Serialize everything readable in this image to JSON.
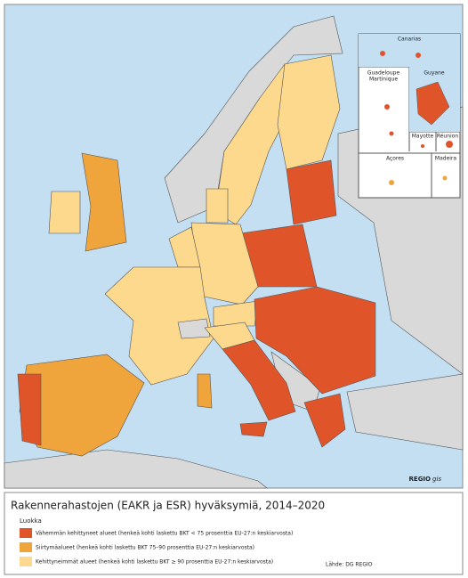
{
  "map": {
    "insets": [
      "Canarias",
      "Guadeloupe",
      "Martinique",
      "Guyane",
      "Mayotte",
      "Réunion",
      "Açores",
      "Madeira"
    ],
    "credit": "REGIO",
    "credit_suffix": "gis"
  },
  "legend": {
    "title": "Rakennerahastojen (EAKR ja ESR) hyväksymiä, 2014–2020",
    "heading": "Luokka",
    "items": [
      {
        "label": "Vähemmän kehittyneet alueet (henkeä kohti laskettu BKT < 75 prosenttia EU-27:n keskiarvosta)",
        "color": "#e0542a"
      },
      {
        "label": "Siirtymäalueet (henkeä kohti laskettu BKT 75–90 prosenttia EU-27:n keskiarvosta)",
        "color": "#f0a43c"
      },
      {
        "label": "Kehittyneimmät alueet (henkeä kohti laskettu BKT ≥ 90 prosenttia EU-27:n keskiarvosta)",
        "color": "#fcd98c"
      }
    ],
    "source": "Lähde: DG REGIO"
  }
}
